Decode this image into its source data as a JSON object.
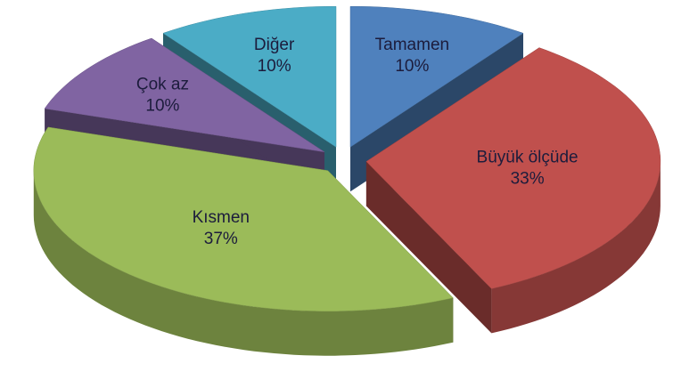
{
  "chart_data": {
    "type": "pie3d",
    "categories": [
      "Tamamen",
      "Büyük ölçüde",
      "Kısmen",
      "Çok az",
      "Diğer"
    ],
    "values": [
      10,
      33,
      37,
      10,
      10
    ],
    "value_labels": [
      "10%",
      "33%",
      "37%",
      "10%",
      "10%"
    ],
    "colors": [
      "#4f81bd",
      "#c0504d",
      "#9bbb59",
      "#8064a2",
      "#4bacc6"
    ]
  }
}
